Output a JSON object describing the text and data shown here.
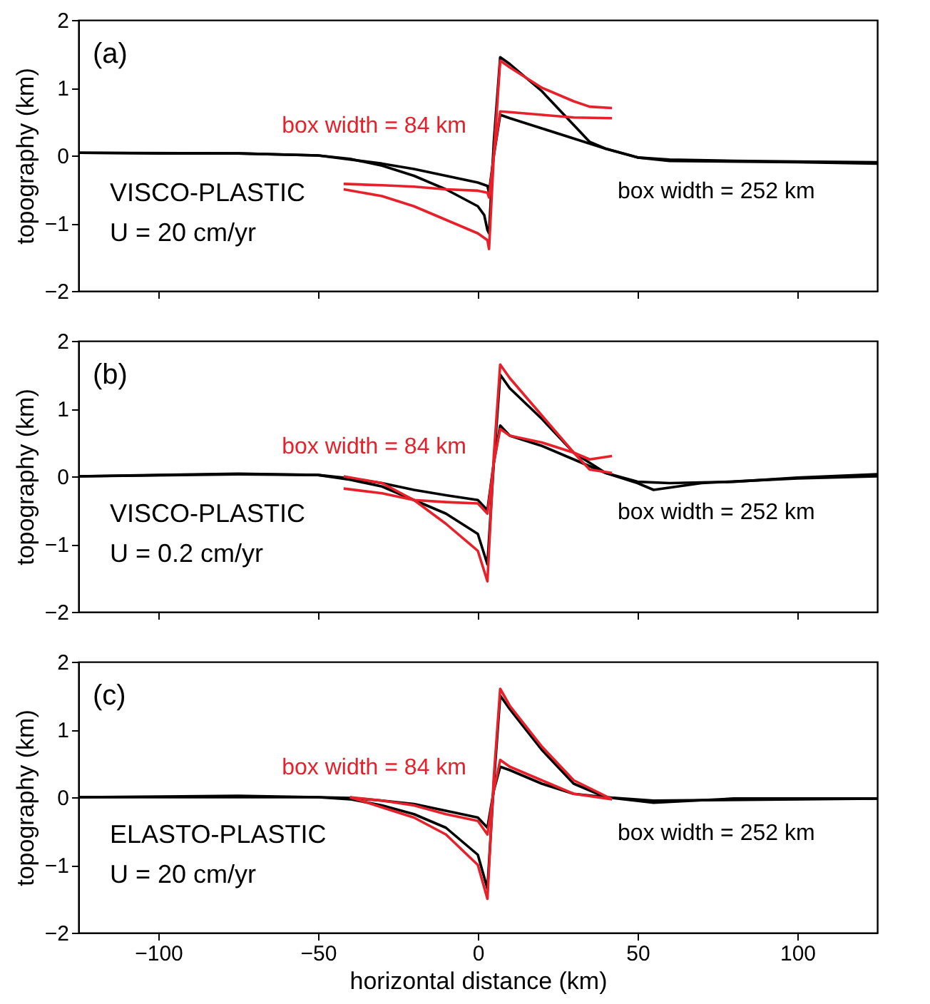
{
  "chart_data": [
    {
      "type": "line",
      "ylabel": "topography (km)",
      "xlim": [
        -125,
        125
      ],
      "ylim": [
        -2,
        2
      ],
      "xticks": [
        -100,
        -50,
        0,
        50,
        100
      ],
      "yticks": [
        -2,
        -1,
        0,
        1,
        2
      ],
      "tick_labels": "y",
      "grid": false,
      "annotations": [
        "(a)",
        "box width = 84 km",
        "box width = 252 km",
        "VISCO-PLASTIC",
        "U = 20 cm/yr"
      ],
      "series": [
        {
          "color": "#000000",
          "x": [
            -125,
            -100,
            -75,
            -50,
            -40,
            -30,
            -20,
            -10,
            0,
            2,
            3,
            3.5,
            5,
            7,
            10,
            20,
            30,
            35,
            40,
            50,
            60,
            80,
            100,
            125
          ],
          "values": [
            0.04,
            0.03,
            0.03,
            0.0,
            -0.05,
            -0.15,
            -0.3,
            -0.5,
            -0.75,
            -0.88,
            -1.1,
            -1.15,
            0.2,
            1.45,
            1.35,
            0.95,
            0.45,
            0.2,
            0.1,
            -0.03,
            -0.06,
            -0.08,
            -0.09,
            -0.1
          ]
        },
        {
          "color": "#000000",
          "x": [
            -125,
            -75,
            -50,
            -40,
            -30,
            -20,
            -10,
            0,
            3,
            3.5,
            5,
            7,
            10,
            20,
            30,
            40,
            50,
            60,
            100,
            125
          ],
          "values": [
            0.04,
            0.03,
            0.0,
            -0.06,
            -0.12,
            -0.2,
            -0.3,
            -0.4,
            -0.45,
            -0.55,
            0.0,
            0.6,
            0.55,
            0.4,
            0.25,
            0.1,
            -0.03,
            -0.08,
            -0.1,
            -0.12
          ]
        },
        {
          "color": "#e8202a",
          "x": [
            -42,
            -30,
            -20,
            -10,
            0,
            3,
            3.5,
            5,
            7,
            10,
            20,
            30,
            35,
            42
          ],
          "values": [
            -0.5,
            -0.6,
            -0.75,
            -0.95,
            -1.15,
            -1.25,
            -1.38,
            0.0,
            1.4,
            1.3,
            1.0,
            0.8,
            0.72,
            0.7
          ]
        },
        {
          "color": "#e8202a",
          "x": [
            -42,
            -30,
            -20,
            -10,
            0,
            3,
            3.5,
            5,
            7,
            10,
            20,
            30,
            42
          ],
          "values": [
            -0.42,
            -0.44,
            -0.46,
            -0.5,
            -0.52,
            -0.55,
            -0.62,
            0.0,
            0.65,
            0.64,
            0.6,
            0.56,
            0.55
          ]
        }
      ]
    },
    {
      "type": "line",
      "ylabel": "topography (km)",
      "xlim": [
        -125,
        125
      ],
      "ylim": [
        -2,
        2
      ],
      "xticks": [
        -100,
        -50,
        0,
        50,
        100
      ],
      "yticks": [
        -2,
        -1,
        0,
        1,
        2
      ],
      "tick_labels": "y",
      "grid": false,
      "annotations": [
        "(b)",
        "box width = 84 km",
        "box width = 252 km",
        "VISCO-PLASTIC",
        "U = 0.2 cm/yr"
      ],
      "series": [
        {
          "color": "#000000",
          "x": [
            -125,
            -100,
            -75,
            -50,
            -40,
            -30,
            -20,
            -10,
            0,
            3,
            5,
            7,
            10,
            20,
            30,
            40,
            50,
            60,
            80,
            100,
            125
          ],
          "values": [
            0.0,
            0.02,
            0.04,
            0.02,
            -0.05,
            -0.15,
            -0.35,
            -0.55,
            -0.85,
            -1.3,
            0.2,
            1.5,
            1.3,
            0.85,
            0.35,
            0.05,
            -0.08,
            -0.1,
            -0.08,
            -0.02,
            0.03
          ]
        },
        {
          "color": "#000000",
          "x": [
            -125,
            -75,
            -50,
            -40,
            -30,
            -20,
            -10,
            0,
            3,
            5,
            7,
            10,
            20,
            30,
            40,
            50,
            55,
            70,
            100,
            125
          ],
          "values": [
            0.0,
            0.03,
            0.02,
            -0.03,
            -0.1,
            -0.2,
            -0.28,
            -0.35,
            -0.5,
            0.2,
            0.75,
            0.6,
            0.45,
            0.25,
            0.05,
            -0.1,
            -0.2,
            -0.1,
            -0.03,
            0.0
          ]
        },
        {
          "color": "#e8202a",
          "x": [
            -42,
            -30,
            -20,
            -10,
            0,
            3,
            5,
            7,
            10,
            20,
            30,
            35,
            42
          ],
          "values": [
            0.0,
            -0.1,
            -0.35,
            -0.7,
            -1.1,
            -1.55,
            0.3,
            1.65,
            1.45,
            0.9,
            0.35,
            0.1,
            0.05
          ]
        },
        {
          "color": "#e8202a",
          "x": [
            -42,
            -30,
            -20,
            -10,
            0,
            3,
            5,
            7,
            10,
            20,
            30,
            35,
            42
          ],
          "values": [
            -0.18,
            -0.25,
            -0.35,
            -0.38,
            -0.4,
            -0.55,
            0.2,
            0.7,
            0.6,
            0.5,
            0.35,
            0.25,
            0.3
          ]
        }
      ]
    },
    {
      "type": "line",
      "xlabel": "horizontal distance (km)",
      "ylabel": "topography (km)",
      "xlim": [
        -125,
        125
      ],
      "ylim": [
        -2,
        2
      ],
      "xticks": [
        -100,
        -50,
        0,
        50,
        100
      ],
      "yticks": [
        -2,
        -1,
        0,
        1,
        2
      ],
      "grid": false,
      "annotations": [
        "(c)",
        "box width = 84 km",
        "box width = 252 km",
        "ELASTO-PLASTIC",
        "U = 20 cm/yr"
      ],
      "series": [
        {
          "color": "#000000",
          "x": [
            -125,
            -75,
            -50,
            -40,
            -30,
            -20,
            -10,
            0,
            3,
            5,
            7,
            10,
            20,
            30,
            40,
            55,
            80,
            125
          ],
          "values": [
            0.0,
            0.02,
            0.0,
            -0.03,
            -0.12,
            -0.25,
            -0.45,
            -0.85,
            -1.35,
            0.2,
            1.5,
            1.3,
            0.7,
            0.2,
            0.0,
            -0.08,
            -0.02,
            -0.02
          ]
        },
        {
          "color": "#000000",
          "x": [
            -125,
            -50,
            -40,
            -30,
            -20,
            -10,
            0,
            3,
            5,
            7,
            10,
            20,
            30,
            40,
            55,
            125
          ],
          "values": [
            0.0,
            0.0,
            -0.01,
            -0.05,
            -0.1,
            -0.2,
            -0.3,
            -0.45,
            0.1,
            0.45,
            0.4,
            0.2,
            0.05,
            0.0,
            -0.05,
            -0.02
          ]
        },
        {
          "color": "#e8202a",
          "x": [
            -40,
            -30,
            -20,
            -10,
            0,
            3,
            5,
            7,
            10,
            20,
            30,
            42
          ],
          "values": [
            0.0,
            -0.15,
            -0.3,
            -0.55,
            -1.0,
            -1.5,
            0.3,
            1.6,
            1.35,
            0.75,
            0.25,
            -0.03
          ]
        },
        {
          "color": "#e8202a",
          "x": [
            -40,
            -30,
            -20,
            -10,
            0,
            3,
            5,
            7,
            10,
            20,
            30,
            42
          ],
          "values": [
            0.0,
            -0.05,
            -0.12,
            -0.25,
            -0.35,
            -0.55,
            0.1,
            0.55,
            0.45,
            0.25,
            0.05,
            -0.03
          ]
        }
      ]
    }
  ]
}
